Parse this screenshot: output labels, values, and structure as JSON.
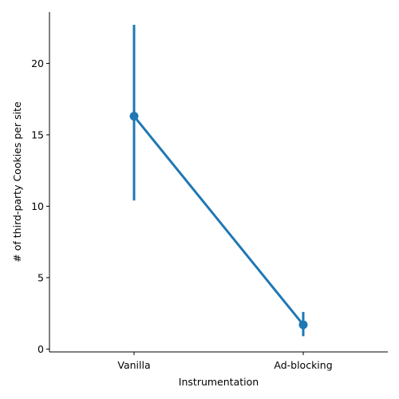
{
  "chart_data": {
    "type": "line",
    "categories": [
      "Vanilla",
      "Ad-blocking"
    ],
    "series": [
      {
        "values": [
          16.3,
          1.7
        ],
        "ci_low": [
          10.4,
          0.9
        ],
        "ci_high": [
          22.7,
          2.6
        ],
        "color": "#1f77b4"
      }
    ],
    "xlabel": "Instrumentation",
    "ylabel": "# of third-party Cookies per site",
    "ylim": [
      -0.2,
      23.6
    ],
    "yticks": [
      0,
      5,
      10,
      15,
      20
    ],
    "grid": false,
    "legend": "none",
    "error_bars": true,
    "markers": true
  }
}
